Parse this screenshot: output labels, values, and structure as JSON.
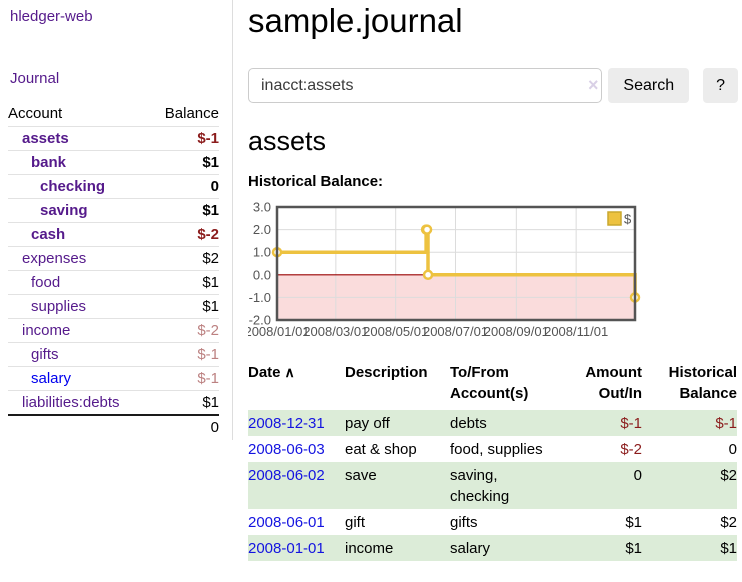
{
  "app": {
    "brand": "hledger-web"
  },
  "colors": {
    "link_visited_purple": "#551A8B",
    "link_unvisited_blue": "#0000EE",
    "date_link_blue": "#1414E0",
    "negative_strong": "#8B1C1C",
    "negative_soft": "#BC8181",
    "row_stripe_green": "#dcecd8",
    "button_gray": "#ececec",
    "clear_icon_lavender": "#D9D0E6"
  },
  "sidebar": {
    "journal_link": "Journal",
    "accounts_table": {
      "headers": {
        "account": "Account",
        "balance": "Balance"
      },
      "rows": [
        {
          "name": "assets",
          "balance": "$-1",
          "depth": 1,
          "bold": true,
          "visited": true
        },
        {
          "name": "bank",
          "balance": "$1",
          "depth": 2,
          "bold": true,
          "visited": true
        },
        {
          "name": "checking",
          "balance": "0",
          "depth": 3,
          "bold": true,
          "visited": true
        },
        {
          "name": "saving",
          "balance": "$1",
          "depth": 3,
          "bold": true,
          "visited": true
        },
        {
          "name": "cash",
          "balance": "$-2",
          "depth": 2,
          "bold": true,
          "visited": true
        },
        {
          "name": "expenses",
          "balance": "$2",
          "depth": 1,
          "bold": false,
          "visited": true
        },
        {
          "name": "food",
          "balance": "$1",
          "depth": 2,
          "bold": false,
          "visited": true
        },
        {
          "name": "supplies",
          "balance": "$1",
          "depth": 2,
          "bold": false,
          "visited": true
        },
        {
          "name": "income",
          "balance": "$-2",
          "depth": 1,
          "bold": false,
          "visited": true
        },
        {
          "name": "gifts",
          "balance": "$-1",
          "depth": 2,
          "bold": false,
          "visited": true
        },
        {
          "name": "salary",
          "balance": "$-1",
          "depth": 2,
          "bold": false,
          "visited": false
        },
        {
          "name": "liabilities:debts",
          "balance": "$1",
          "depth": 1,
          "bold": false,
          "visited": true
        }
      ],
      "total": "0"
    }
  },
  "main": {
    "title": "sample.journal",
    "search": {
      "value": "inacct:assets",
      "clear_icon": "×",
      "button_label": "Search",
      "help_label": "?"
    },
    "account_heading": "assets",
    "chart_label": "Historical Balance:"
  },
  "chart_data": {
    "type": "line",
    "steps": true,
    "title": "Historical Balance:",
    "series": [
      {
        "name": "$",
        "color": "#EDC240",
        "points": [
          [
            "2008-01-01",
            1
          ],
          [
            "2008-06-01",
            2
          ],
          [
            "2008-06-02",
            2
          ],
          [
            "2008-06-03",
            0
          ],
          [
            "2008-12-31",
            -1
          ]
        ]
      }
    ],
    "xlim": [
      "2008-01-01",
      "2008-12-31"
    ],
    "ylim": [
      -2,
      3
    ],
    "yticks": [
      3.0,
      2.0,
      1.0,
      0.0,
      -1.0,
      -2.0
    ],
    "xticks": [
      {
        "date": "2008-01-01",
        "label": "2008/01/01"
      },
      {
        "date": "2008-03-01",
        "label": "2008/03/01"
      },
      {
        "date": "2008-05-01",
        "label": "2008/05/01"
      },
      {
        "date": "2008-07-01",
        "label": "2008/07/01"
      },
      {
        "date": "2008-09-01",
        "label": "2008/09/01"
      },
      {
        "date": "2008-11-01",
        "label": "2008/11/01"
      }
    ],
    "grid": true,
    "negative_region_color": "#FADCDC",
    "zero_line_color": "#990000",
    "grid_color": "#dcdcdc",
    "border_color": "#545454",
    "tick_label_color": "#545454",
    "legend": {
      "label": "$",
      "position": "top-right"
    }
  },
  "register_table": {
    "headers": {
      "date": "Date",
      "sort_icon": "∧",
      "description": "Description",
      "tofrom": "To/From Account(s)",
      "amount": "Amount Out/In",
      "historical": "Historical Balance"
    },
    "rows": [
      {
        "date": "2008-12-31",
        "description": "pay off",
        "accounts": "debts",
        "amount": "$-1",
        "balance": "$-1"
      },
      {
        "date": "2008-06-03",
        "description": "eat & shop",
        "accounts": "food, supplies",
        "amount": "$-2",
        "balance": "0"
      },
      {
        "date": "2008-06-02",
        "description": "save",
        "accounts": "saving, checking",
        "amount": "0",
        "balance": "$2"
      },
      {
        "date": "2008-06-01",
        "description": "gift",
        "accounts": "gifts",
        "amount": "$1",
        "balance": "$2"
      },
      {
        "date": "2008-01-01",
        "description": "income",
        "accounts": "salary",
        "amount": "$1",
        "balance": "$1"
      }
    ]
  }
}
